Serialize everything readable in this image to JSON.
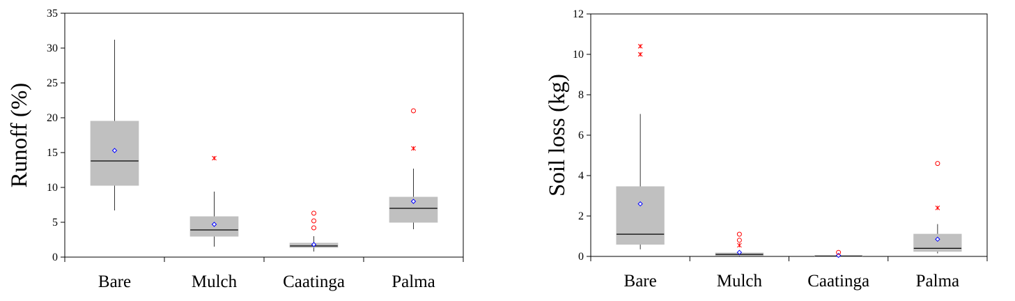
{
  "chart_data": [
    {
      "type": "box",
      "ylabel": "Runoff (%)",
      "ylim": [
        0,
        35
      ],
      "yticks": [
        0,
        5,
        10,
        15,
        20,
        25,
        30,
        35
      ],
      "categories": [
        "Bare",
        "Mulch",
        "Caatinga",
        "Palma"
      ],
      "colors": {
        "box": "#c0c0c0",
        "median": "#000000",
        "mean": "#0000ff",
        "outlier": "#ff0000"
      },
      "boxes": [
        {
          "category": "Bare",
          "whisker_low": 6.7,
          "q1": 10.3,
          "median": 13.8,
          "q3": 19.5,
          "whisker_high": 31.2,
          "mean": 15.3,
          "outliers": []
        },
        {
          "category": "Mulch",
          "whisker_low": 1.5,
          "q1": 3.0,
          "median": 3.9,
          "q3": 5.8,
          "whisker_high": 9.4,
          "mean": 4.7,
          "outliers": [
            {
              "value": 14.2,
              "symbol": "star"
            }
          ]
        },
        {
          "category": "Caatinga",
          "whisker_low": 0.8,
          "q1": 1.4,
          "median": 1.6,
          "q3": 2.0,
          "whisker_high": 3.0,
          "mean": 1.8,
          "outliers": [
            {
              "value": 4.2,
              "symbol": "circle"
            },
            {
              "value": 5.2,
              "symbol": "circle"
            },
            {
              "value": 6.3,
              "symbol": "circle"
            }
          ]
        },
        {
          "category": "Palma",
          "whisker_low": 4.0,
          "q1": 5.0,
          "median": 7.0,
          "q3": 8.6,
          "whisker_high": 12.7,
          "mean": 8.0,
          "outliers": [
            {
              "value": 15.6,
              "symbol": "star"
            },
            {
              "value": 21.0,
              "symbol": "circle"
            }
          ]
        }
      ]
    },
    {
      "type": "box",
      "ylabel": "Soil loss (kg)",
      "ylim": [
        0,
        12
      ],
      "yticks": [
        0,
        2,
        4,
        6,
        8,
        10,
        12
      ],
      "categories": [
        "Bare",
        "Mulch",
        "Caatinga",
        "Palma"
      ],
      "colors": {
        "box": "#c0c0c0",
        "median": "#000000",
        "mean": "#0000ff",
        "outlier": "#ff0000"
      },
      "boxes": [
        {
          "category": "Bare",
          "whisker_low": 0.35,
          "q1": 0.6,
          "median": 1.1,
          "q3": 3.45,
          "whisker_high": 7.05,
          "mean": 2.6,
          "outliers": [
            {
              "value": 10.0,
              "symbol": "star"
            },
            {
              "value": 10.4,
              "symbol": "star"
            }
          ]
        },
        {
          "category": "Mulch",
          "whisker_low": 0.02,
          "q1": 0.05,
          "median": 0.1,
          "q3": 0.17,
          "whisker_high": 0.25,
          "mean": 0.2,
          "outliers": [
            {
              "value": 0.55,
              "symbol": "star"
            },
            {
              "value": 0.8,
              "symbol": "circle"
            },
            {
              "value": 1.1,
              "symbol": "circle"
            }
          ]
        },
        {
          "category": "Caatinga",
          "whisker_low": 0.0,
          "q1": 0.01,
          "median": 0.02,
          "q3": 0.03,
          "whisker_high": 0.05,
          "mean": 0.05,
          "outliers": [
            {
              "value": 0.2,
              "symbol": "circle"
            }
          ]
        },
        {
          "category": "Palma",
          "whisker_low": 0.15,
          "q1": 0.25,
          "median": 0.4,
          "q3": 1.1,
          "whisker_high": 1.6,
          "mean": 0.85,
          "outliers": [
            {
              "value": 2.4,
              "symbol": "star"
            },
            {
              "value": 4.6,
              "symbol": "circle"
            }
          ]
        }
      ]
    }
  ]
}
